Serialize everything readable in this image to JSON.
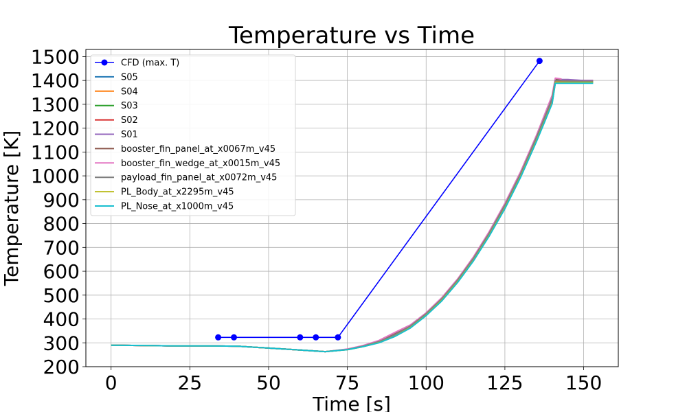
{
  "chart_data": {
    "type": "line",
    "title": "Temperature vs Time",
    "xlabel": "Time [s]",
    "ylabel": "Temperature [K]",
    "xlim": [
      -8,
      161
    ],
    "ylim": [
      200,
      1530
    ],
    "xticks": [
      0,
      25,
      50,
      75,
      100,
      125,
      150
    ],
    "yticks": [
      200,
      300,
      400,
      500,
      600,
      700,
      800,
      900,
      1000,
      1100,
      1200,
      1300,
      1400,
      1500
    ],
    "grid": true,
    "legend_position": "upper-left",
    "series": [
      {
        "name": "CFD (max. T)",
        "color": "#0000ff",
        "marker": "circle",
        "x": [
          34,
          39,
          60,
          65,
          72,
          136
        ],
        "y": [
          323,
          323,
          323,
          323,
          323,
          1482
        ]
      },
      {
        "name": "S05",
        "color": "#1f77b4",
        "x": [
          0,
          10,
          20,
          30,
          40,
          50,
          60,
          68,
          75,
          80,
          85,
          90,
          95,
          100,
          105,
          110,
          115,
          120,
          125,
          130,
          135,
          138,
          140,
          141,
          145,
          150,
          153
        ],
        "y": [
          290,
          289,
          287,
          287,
          286,
          278,
          270,
          263,
          272,
          285,
          302,
          328,
          365,
          417,
          480,
          557,
          648,
          752,
          868,
          1000,
          1150,
          1245,
          1310,
          1395,
          1395,
          1395,
          1395
        ]
      },
      {
        "name": "S04",
        "color": "#ff7f0e",
        "x": [
          0,
          10,
          20,
          30,
          40,
          50,
          60,
          68,
          75,
          80,
          85,
          90,
          95,
          100,
          105,
          110,
          115,
          120,
          125,
          130,
          135,
          138,
          140,
          141,
          145,
          150,
          153
        ],
        "y": [
          290,
          289,
          287,
          287,
          286,
          278,
          270,
          263,
          272,
          285,
          303,
          330,
          367,
          419,
          482,
          559,
          650,
          755,
          872,
          1004,
          1154,
          1250,
          1316,
          1398,
          1398,
          1398,
          1398
        ]
      },
      {
        "name": "S03",
        "color": "#2ca02c",
        "x": [
          0,
          10,
          20,
          30,
          40,
          50,
          60,
          68,
          75,
          80,
          85,
          90,
          95,
          100,
          105,
          110,
          115,
          120,
          125,
          130,
          135,
          138,
          140,
          141,
          145,
          150,
          153
        ],
        "y": [
          290,
          289,
          287,
          287,
          286,
          278,
          270,
          263,
          271,
          284,
          301,
          327,
          363,
          415,
          478,
          555,
          645,
          749,
          864,
          996,
          1145,
          1240,
          1305,
          1390,
          1390,
          1390,
          1390
        ]
      },
      {
        "name": "S02",
        "color": "#d62728",
        "x": [
          0,
          10,
          20,
          30,
          40,
          50,
          60,
          68,
          75,
          80,
          85,
          90,
          95,
          100,
          105,
          110,
          115,
          120,
          125,
          130,
          135,
          138,
          140,
          141,
          145,
          150,
          153
        ],
        "y": [
          290,
          289,
          287,
          287,
          286,
          278,
          270,
          263,
          272,
          285,
          303,
          331,
          368,
          420,
          483,
          561,
          652,
          757,
          875,
          1007,
          1158,
          1255,
          1322,
          1402,
          1402,
          1400,
          1400
        ]
      },
      {
        "name": "S01",
        "color": "#9467bd",
        "x": [
          0,
          10,
          20,
          30,
          40,
          50,
          60,
          68,
          75,
          80,
          85,
          90,
          95,
          100,
          105,
          110,
          115,
          120,
          125,
          130,
          135,
          138,
          140,
          141,
          145,
          150,
          153
        ],
        "y": [
          290,
          289,
          287,
          287,
          286,
          278,
          270,
          263,
          272,
          286,
          304,
          332,
          369,
          421,
          484,
          562,
          653,
          758,
          876,
          1008,
          1160,
          1257,
          1324,
          1404,
          1404,
          1400,
          1400
        ]
      },
      {
        "name": "booster_fin_panel_at_x0067m_v45",
        "color": "#8c564b",
        "x": [
          0,
          10,
          20,
          30,
          40,
          50,
          60,
          68,
          75,
          80,
          85,
          90,
          95,
          100,
          105,
          110,
          115,
          120,
          125,
          130,
          135,
          138,
          140,
          141,
          142,
          143
        ],
        "y": [
          290,
          289,
          287,
          287,
          286,
          278,
          270,
          263,
          273,
          288,
          308,
          340,
          372,
          423,
          486,
          564,
          655,
          760,
          878,
          1010,
          1162,
          1260,
          1328,
          1405,
          1402,
          1400
        ]
      },
      {
        "name": "booster_fin_wedge_at_x0015m_v45",
        "color": "#e377c2",
        "x": [
          0,
          10,
          20,
          30,
          40,
          50,
          60,
          68,
          75,
          80,
          85,
          90,
          95,
          100,
          105,
          110,
          115,
          120,
          125,
          130,
          135,
          138,
          140,
          141,
          142,
          143
        ],
        "y": [
          290,
          289,
          287,
          287,
          286,
          278,
          270,
          263,
          274,
          289,
          310,
          343,
          375,
          426,
          490,
          568,
          660,
          766,
          885,
          1018,
          1170,
          1270,
          1338,
          1410,
          1408,
          1406
        ]
      },
      {
        "name": "payload_fin_panel_at_x0072m_v45",
        "color": "#7f7f7f",
        "x": [
          0,
          10,
          20,
          30,
          40,
          50,
          60,
          68,
          75,
          80,
          85,
          90,
          95,
          100,
          105,
          110,
          115,
          120,
          125,
          130,
          135,
          138,
          140,
          141,
          145,
          150,
          153
        ],
        "y": [
          290,
          289,
          287,
          287,
          286,
          278,
          270,
          263,
          272,
          286,
          305,
          334,
          370,
          422,
          485,
          563,
          654,
          759,
          877,
          1009,
          1161,
          1258,
          1325,
          1400,
          1398,
          1396,
          1396
        ]
      },
      {
        "name": "PL_Body_at_x2295m_v45",
        "color": "#bcbd22",
        "x": [
          0,
          10,
          20,
          30,
          40,
          50,
          60,
          68,
          75,
          80,
          85,
          90,
          95,
          100,
          105,
          110,
          115,
          120,
          125,
          130,
          135,
          138,
          140,
          141,
          145,
          150,
          153
        ],
        "y": [
          290,
          289,
          287,
          287,
          286,
          278,
          270,
          263,
          271,
          284,
          301,
          327,
          364,
          416,
          479,
          556,
          646,
          750,
          866,
          998,
          1147,
          1242,
          1307,
          1392,
          1392,
          1392,
          1392
        ]
      },
      {
        "name": "PL_Nose_at_x1000m_v45",
        "color": "#17becf",
        "x": [
          0,
          10,
          20,
          30,
          40,
          50,
          60,
          68,
          75,
          80,
          85,
          90,
          95,
          100,
          105,
          110,
          115,
          120,
          125,
          130,
          135,
          138,
          140,
          141,
          145,
          150,
          153
        ],
        "y": [
          290,
          289,
          287,
          287,
          286,
          278,
          270,
          263,
          271,
          284,
          300,
          326,
          362,
          414,
          476,
          553,
          643,
          747,
          862,
          994,
          1143,
          1238,
          1303,
          1388,
          1388,
          1388,
          1388
        ]
      }
    ]
  }
}
